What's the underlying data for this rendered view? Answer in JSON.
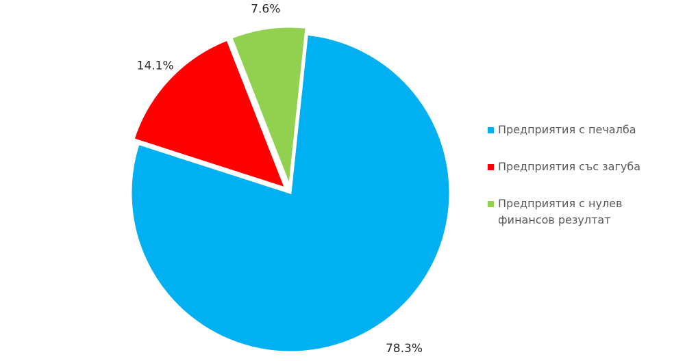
{
  "chart_data": {
    "type": "pie",
    "categories": [
      "Предприятия с печалба",
      "Предприятия със загуба",
      "Предприятия с нулев финансов резултат"
    ],
    "values": [
      78.3,
      14.1,
      7.6
    ],
    "value_labels": [
      "78.3%",
      "14.1%",
      "7.6%"
    ],
    "colors": [
      "#00b0f0",
      "#ff0000",
      "#92d050"
    ],
    "legend": "right"
  }
}
